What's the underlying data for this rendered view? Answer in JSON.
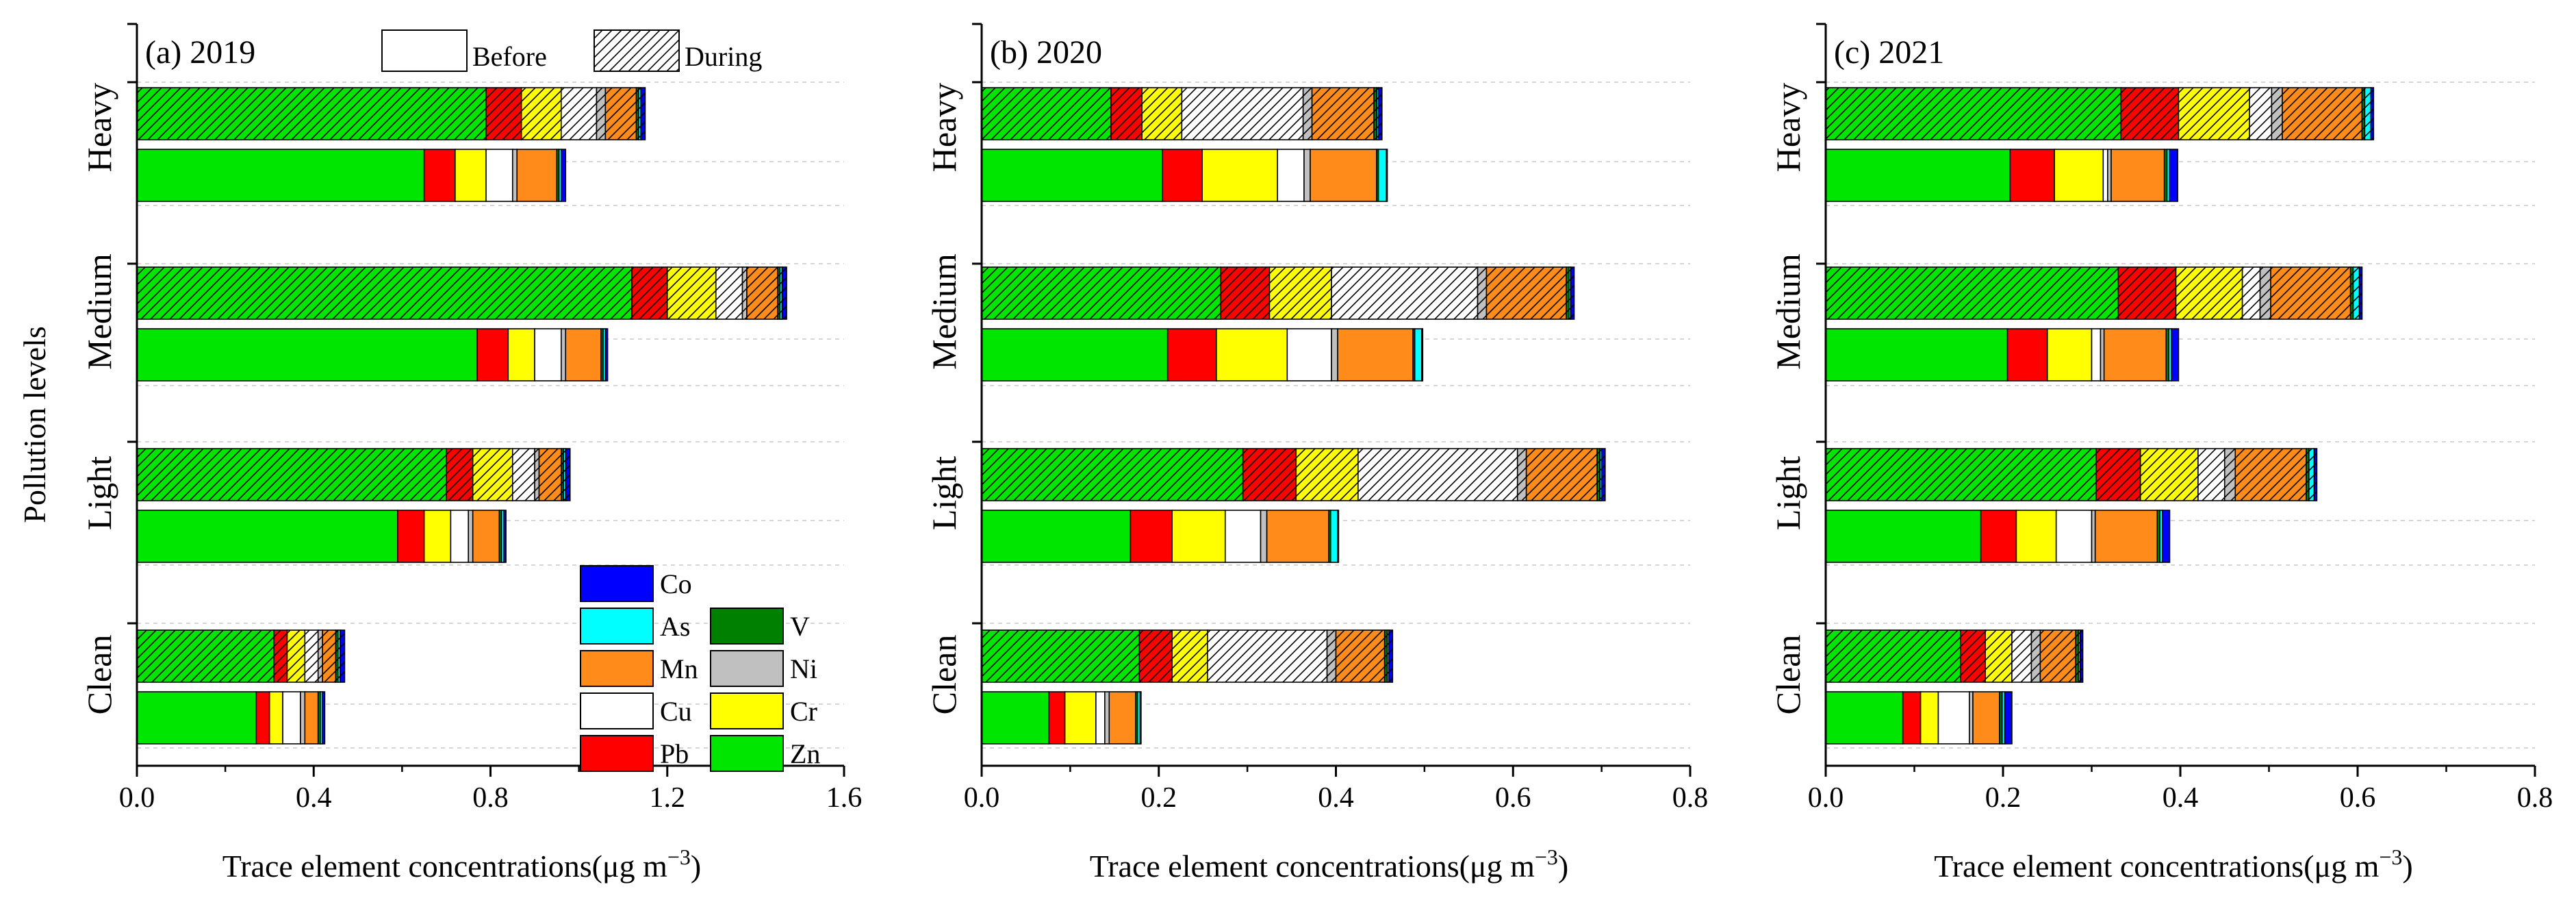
{
  "figure": {
    "ylabel": "Pollution levels",
    "xlabel": "Trace element concentrations(μg m",
    "xlabel_exponent": "−3",
    "xlabel_close": ")"
  },
  "legend_phase": [
    {
      "name": "Before",
      "pattern": "solid"
    },
    {
      "name": "During",
      "pattern": "hatched"
    }
  ],
  "legend_elements": [
    {
      "name": "Co",
      "color": "#0000ff"
    },
    {
      "name": "As",
      "color": "#00ffff"
    },
    {
      "name": "V",
      "color": "#008000"
    },
    {
      "name": "Mn",
      "color": "#ff8c1a"
    },
    {
      "name": "Ni",
      "color": "#c0c0c0"
    },
    {
      "name": "Cu",
      "color": "#ffffff"
    },
    {
      "name": "Cr",
      "color": "#ffff00"
    },
    {
      "name": "Pb",
      "color": "#ff0000"
    },
    {
      "name": "Zn",
      "color": "#00e600"
    }
  ],
  "chart_data": [
    {
      "type": "bar",
      "orientation": "horizontal",
      "stacked": true,
      "title": "(a) 2019",
      "categories": [
        "Heavy",
        "Medium",
        "Light",
        "Clean"
      ],
      "xlim": [
        0,
        1.6
      ],
      "xticks": [
        "0.0",
        "0.4",
        "0.8",
        "1.2",
        "1.6"
      ],
      "stack_order": [
        "Zn",
        "Pb",
        "Cr",
        "Cu",
        "Ni",
        "Mn",
        "V",
        "As",
        "Co"
      ],
      "series": [
        {
          "name": "During",
          "values": {
            "Heavy": [
              0.79,
              0.08,
              0.09,
              0.08,
              0.02,
              0.07,
              0.005,
              0.005,
              0.01
            ],
            "Medium": [
              1.12,
              0.08,
              0.11,
              0.06,
              0.01,
              0.07,
              0.005,
              0.005,
              0.01
            ],
            "Light": [
              0.7,
              0.06,
              0.09,
              0.05,
              0.01,
              0.05,
              0.005,
              0.005,
              0.01
            ],
            "Clean": [
              0.31,
              0.03,
              0.04,
              0.03,
              0.01,
              0.03,
              0.005,
              0.005,
              0.01
            ]
          }
        },
        {
          "name": "Before",
          "values": {
            "Heavy": [
              0.65,
              0.07,
              0.07,
              0.06,
              0.01,
              0.09,
              0.005,
              0.005,
              0.01
            ],
            "Medium": [
              0.77,
              0.07,
              0.06,
              0.06,
              0.01,
              0.08,
              0.005,
              0.005,
              0.005
            ],
            "Light": [
              0.59,
              0.06,
              0.06,
              0.04,
              0.01,
              0.06,
              0.005,
              0.005,
              0.005
            ],
            "Clean": [
              0.27,
              0.03,
              0.03,
              0.04,
              0.01,
              0.03,
              0.005,
              0.005,
              0.005
            ]
          }
        }
      ]
    },
    {
      "type": "bar",
      "orientation": "horizontal",
      "stacked": true,
      "title": "(b) 2020",
      "categories": [
        "Heavy",
        "Medium",
        "Light",
        "Clean"
      ],
      "xlim": [
        0,
        0.8
      ],
      "xticks": [
        "0.0",
        "0.2",
        "0.4",
        "0.6",
        "0.8"
      ],
      "stack_order": [
        "Zn",
        "Pb",
        "Cr",
        "Cu",
        "Ni",
        "Mn",
        "V",
        "As",
        "Co"
      ],
      "series": [
        {
          "name": "During",
          "values": {
            "Heavy": [
              0.146,
              0.035,
              0.045,
              0.137,
              0.01,
              0.07,
              0.003,
              0.002,
              0.004
            ],
            "Medium": [
              0.27,
              0.055,
              0.07,
              0.165,
              0.01,
              0.09,
              0.003,
              0.002,
              0.004
            ],
            "Light": [
              0.295,
              0.06,
              0.07,
              0.18,
              0.01,
              0.08,
              0.003,
              0.002,
              0.004
            ],
            "Clean": [
              0.178,
              0.037,
              0.04,
              0.135,
              0.01,
              0.055,
              0.003,
              0.002,
              0.004
            ]
          }
        },
        {
          "name": "Before",
          "values": {
            "Heavy": [
              0.204,
              0.045,
              0.085,
              0.03,
              0.007,
              0.075,
              0.002,
              0.009,
              0.001
            ],
            "Medium": [
              0.21,
              0.055,
              0.08,
              0.05,
              0.007,
              0.085,
              0.002,
              0.008,
              0.001
            ],
            "Light": [
              0.168,
              0.047,
              0.06,
              0.04,
              0.007,
              0.07,
              0.002,
              0.008,
              0.001
            ],
            "Clean": [
              0.076,
              0.018,
              0.035,
              0.01,
              0.005,
              0.03,
              0.002,
              0.003,
              0.001
            ]
          }
        }
      ]
    },
    {
      "type": "bar",
      "orientation": "horizontal",
      "stacked": true,
      "title": "(c) 2021",
      "categories": [
        "Heavy",
        "Medium",
        "Light",
        "Clean"
      ],
      "xlim": [
        0,
        0.8
      ],
      "xticks": [
        "0.0",
        "0.2",
        "0.4",
        "0.6",
        "0.8"
      ],
      "stack_order": [
        "Zn",
        "Pb",
        "Cr",
        "Cu",
        "Ni",
        "Mn",
        "V",
        "As",
        "Co"
      ],
      "series": [
        {
          "name": "During",
          "values": {
            "Heavy": [
              0.333,
              0.065,
              0.08,
              0.025,
              0.012,
              0.09,
              0.003,
              0.007,
              0.003
            ],
            "Medium": [
              0.33,
              0.065,
              0.075,
              0.02,
              0.012,
              0.09,
              0.003,
              0.007,
              0.003
            ],
            "Light": [
              0.305,
              0.05,
              0.065,
              0.03,
              0.012,
              0.08,
              0.003,
              0.006,
              0.003
            ],
            "Clean": [
              0.152,
              0.028,
              0.03,
              0.022,
              0.01,
              0.04,
              0.003,
              0.002,
              0.003
            ]
          }
        },
        {
          "name": "Before",
          "values": {
            "Heavy": [
              0.208,
              0.05,
              0.055,
              0.005,
              0.004,
              0.06,
              0.003,
              0.003,
              0.009
            ],
            "Medium": [
              0.205,
              0.045,
              0.05,
              0.01,
              0.004,
              0.07,
              0.003,
              0.003,
              0.008
            ],
            "Light": [
              0.175,
              0.04,
              0.045,
              0.04,
              0.004,
              0.07,
              0.003,
              0.003,
              0.008
            ],
            "Clean": [
              0.087,
              0.02,
              0.02,
              0.035,
              0.004,
              0.03,
              0.003,
              0.003,
              0.008
            ]
          }
        }
      ]
    }
  ]
}
